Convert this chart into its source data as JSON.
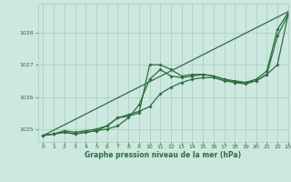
{
  "bg_color": "#cce8e0",
  "grid_color": "#aaccbb",
  "line_color": "#2d6e3e",
  "title": "Graphe pression niveau de la mer (hPa)",
  "xlim": [
    -0.5,
    23
  ],
  "ylim": [
    1024.6,
    1028.9
  ],
  "yticks": [
    1025,
    1026,
    1027,
    1028
  ],
  "xticks": [
    0,
    1,
    2,
    3,
    4,
    5,
    6,
    7,
    8,
    9,
    10,
    11,
    12,
    13,
    14,
    15,
    16,
    17,
    18,
    19,
    20,
    21,
    22,
    23
  ],
  "line_straight": {
    "x": [
      0,
      23
    ],
    "y": [
      1024.8,
      1028.65
    ]
  },
  "line2": {
    "x": [
      0,
      1,
      2,
      3,
      4,
      5,
      6,
      7,
      8,
      9,
      10,
      11,
      12,
      13,
      14,
      15,
      16,
      17,
      18,
      19,
      20,
      21,
      22,
      23
    ],
    "y": [
      1024.8,
      1024.85,
      1024.9,
      1024.85,
      1024.9,
      1024.95,
      1025.1,
      1025.35,
      1025.4,
      1025.5,
      1027.0,
      1027.0,
      1026.85,
      1026.65,
      1026.7,
      1026.7,
      1026.65,
      1026.55,
      1026.45,
      1026.4,
      1026.5,
      1026.7,
      1027.9,
      1028.55
    ]
  },
  "line3": {
    "x": [
      0,
      1,
      2,
      3,
      4,
      5,
      6,
      7,
      8,
      9,
      10,
      11,
      12,
      13,
      14,
      15,
      16,
      17,
      18,
      19,
      20,
      21,
      22,
      23
    ],
    "y": [
      1024.8,
      1024.85,
      1024.9,
      1024.85,
      1024.9,
      1024.95,
      1025.0,
      1025.1,
      1025.35,
      1025.75,
      1026.55,
      1026.85,
      1026.65,
      1026.6,
      1026.65,
      1026.7,
      1026.65,
      1026.55,
      1026.5,
      1026.45,
      1026.55,
      1026.8,
      1028.1,
      1028.62
    ]
  },
  "line4": {
    "x": [
      0,
      1,
      2,
      3,
      4,
      5,
      6,
      7,
      8,
      9,
      10,
      11,
      12,
      13,
      14,
      15,
      16,
      17,
      18,
      19,
      20,
      21,
      22,
      23
    ],
    "y": [
      1024.8,
      1024.85,
      1024.95,
      1024.9,
      1024.95,
      1025.0,
      1025.1,
      1025.35,
      1025.45,
      1025.55,
      1025.7,
      1026.1,
      1026.3,
      1026.45,
      1026.55,
      1026.6,
      1026.6,
      1026.5,
      1026.45,
      1026.45,
      1026.5,
      1026.7,
      1027.0,
      1028.55
    ]
  }
}
